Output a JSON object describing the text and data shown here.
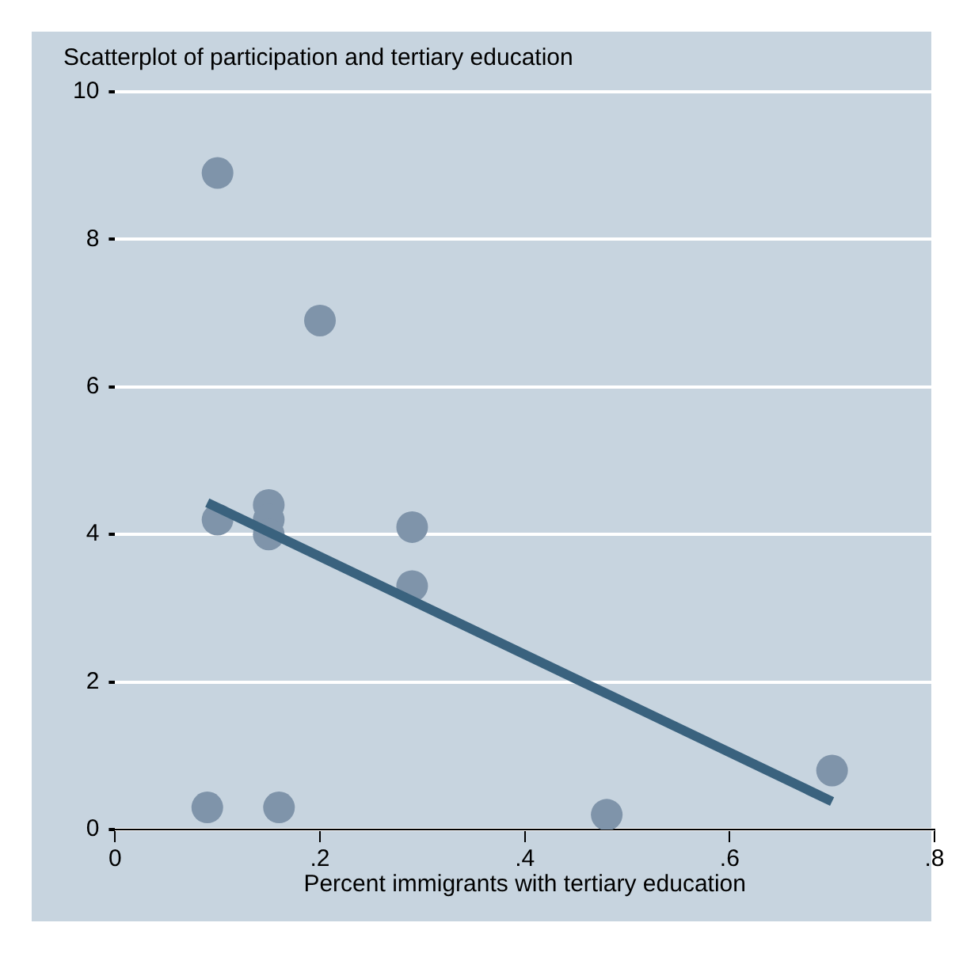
{
  "chart_data": {
    "type": "scatter",
    "title": "Scatterplot of participation and tertiary education",
    "xlabel": "Percent immigrants with tertiary education",
    "series": [
      {
        "color": "#7f94aa",
        "marker": "circle",
        "x": [
          0.1,
          0.2,
          0.15,
          0.15,
          0.1,
          0.15,
          0.29,
          0.29,
          0.09,
          0.16,
          0.48,
          0.7
        ],
        "values": [
          8.9,
          6.9,
          4.4,
          4.2,
          4.2,
          4.0,
          4.1,
          3.3,
          0.3,
          0.3,
          0.2,
          0.8
        ]
      },
      {
        "type": "line",
        "marker": "none",
        "color": "#3a627e",
        "x": [
          0.09,
          0.7
        ],
        "values": [
          4.43,
          0.38
        ]
      }
    ],
    "xlim": [
      0,
      0.8
    ],
    "xticks": [
      {
        "value": 0,
        "label": "0"
      },
      {
        "value": 0.2,
        "label": ".2"
      },
      {
        "value": 0.4,
        "label": ".4"
      },
      {
        "value": 0.6,
        "label": ".6"
      },
      {
        "value": 0.8,
        "label": ".8"
      }
    ],
    "ylim": [
      0,
      10
    ],
    "yticks": [
      0,
      2,
      4,
      6,
      8,
      10
    ],
    "grid": "y",
    "legend": false
  }
}
